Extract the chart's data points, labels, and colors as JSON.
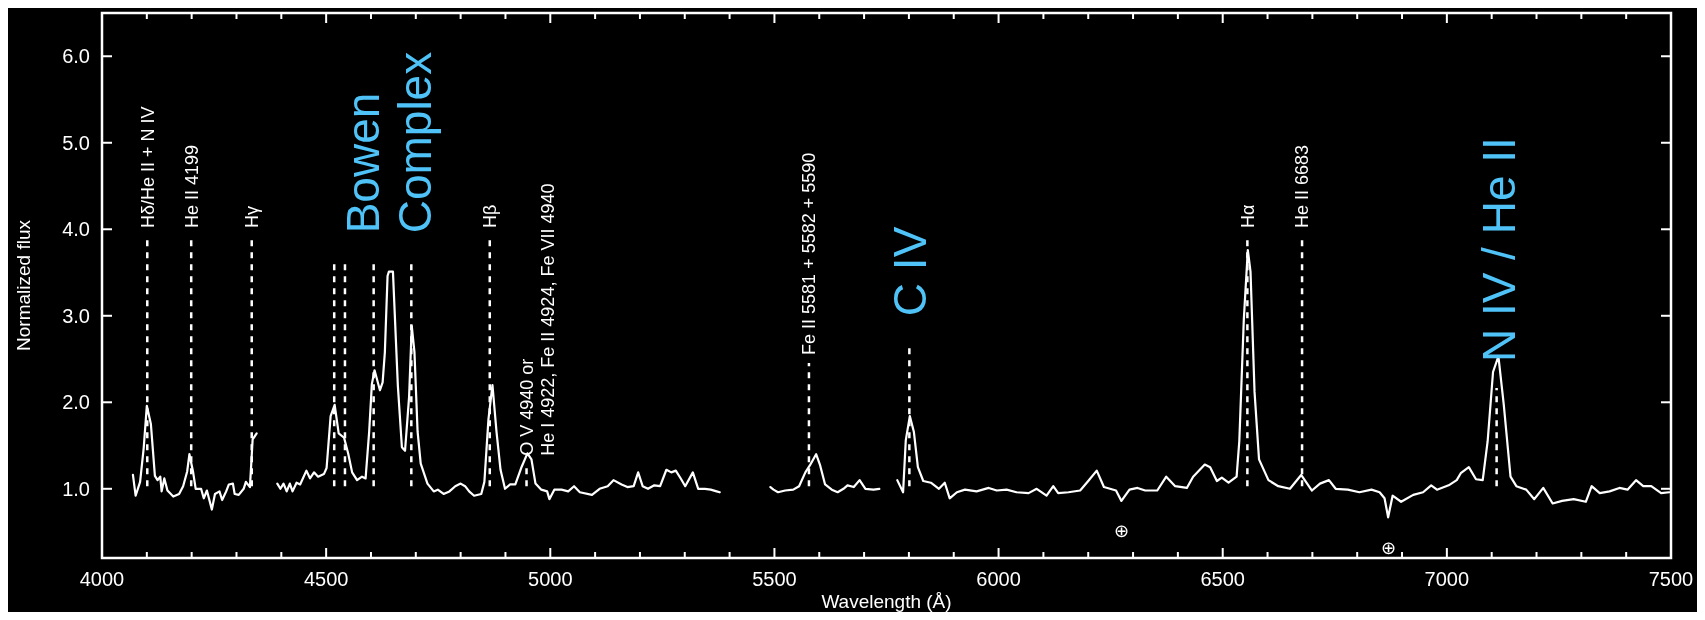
{
  "chart_data": {
    "type": "line",
    "xlabel": "Wavelength (Å)",
    "ylabel": "Normalized flux",
    "xlim": [
      4000,
      7500
    ],
    "ylim": [
      0.2,
      6.5
    ],
    "xticks": [
      4000,
      {
        "value": 4100,
        "label": null
      },
      {
        "value": 4200,
        "label": null
      },
      {
        "value": 4300,
        "label": null
      },
      {
        "value": 4400,
        "label": null
      },
      4500,
      {
        "value": 4600,
        "label": null
      },
      {
        "value": 4700,
        "label": null
      },
      {
        "value": 4800,
        "label": null
      },
      {
        "value": 4900,
        "label": null
      },
      5000,
      {
        "value": 5100,
        "label": null
      },
      {
        "value": 5200,
        "label": null
      },
      {
        "value": 5300,
        "label": null
      },
      {
        "value": 5400,
        "label": null
      },
      5500,
      {
        "value": 5600,
        "label": null
      },
      {
        "value": 5700,
        "label": null
      },
      {
        "value": 5800,
        "label": null
      },
      {
        "value": 5900,
        "label": null
      },
      6000,
      {
        "value": 6100,
        "label": null
      },
      {
        "value": 6200,
        "label": null
      },
      {
        "value": 6300,
        "label": null
      },
      {
        "value": 6400,
        "label": null
      },
      6500,
      {
        "value": 6600,
        "label": null
      },
      {
        "value": 6700,
        "label": null
      },
      {
        "value": 6800,
        "label": null
      },
      {
        "value": 6900,
        "label": null
      },
      7000,
      {
        "value": 7100,
        "label": null
      },
      {
        "value": 7200,
        "label": null
      },
      {
        "value": 7300,
        "label": null
      },
      {
        "value": 7400,
        "label": null
      },
      7500
    ],
    "yticks": [
      {
        "value": 1,
        "label": "1.0"
      },
      {
        "value": 2,
        "label": "2.0"
      },
      {
        "value": 3,
        "label": "3.0"
      },
      {
        "value": 4,
        "label": "4.0"
      },
      {
        "value": 5,
        "label": "5.0"
      },
      {
        "value": 6,
        "label": "6.0"
      }
    ],
    "grid": false,
    "marker": "none",
    "line_style": "solid",
    "x": [
      4069,
      4075,
      4085,
      4093,
      4100,
      4109,
      4118,
      4124,
      4130,
      4133,
      4139,
      4146,
      4159,
      4172,
      4181,
      4190,
      4195,
      4203,
      4209,
      4221,
      4227,
      4234,
      4245,
      4252,
      4262,
      4268,
      4277,
      4283,
      4292,
      4296,
      4305,
      4316,
      4321,
      4330,
      4336,
      4345,
      4368,
      4391,
      4398,
      4405,
      4412,
      4419,
      4425,
      4434,
      4442,
      4456,
      4464,
      4473,
      4482,
      4495,
      4501,
      4510,
      4519,
      4528,
      4540,
      4549,
      4558,
      4569,
      4580,
      4588,
      4596,
      4602,
      4608,
      4620,
      4626,
      4631,
      4637,
      4640,
      4649,
      4660,
      4669,
      4676,
      4685,
      4691,
      4697,
      4704,
      4711,
      4726,
      4740,
      4749,
      4762,
      4775,
      4788,
      4800,
      4810,
      4819,
      4830,
      4846,
      4853,
      4862,
      4871,
      4880,
      4889,
      4899,
      4910,
      4922,
      4935,
      4949,
      4958,
      4967,
      4980,
      4993,
      4998,
      5009,
      5025,
      5040,
      5053,
      5066,
      5093,
      5110,
      5128,
      5141,
      5159,
      5172,
      5186,
      5196,
      5206,
      5218,
      5232,
      5245,
      5259,
      5270,
      5280,
      5292,
      5301,
      5318,
      5330,
      5345,
      5358,
      5371,
      5378,
      5435,
      5491,
      5498,
      5508,
      5524,
      5542,
      5555,
      5569,
      5579,
      5593,
      5602,
      5613,
      5628,
      5641,
      5654,
      5663,
      5677,
      5690,
      5703,
      5721,
      5734,
      5754,
      5774,
      5787,
      5793,
      5802,
      5811,
      5820,
      5832,
      5849,
      5867,
      5880,
      5891,
      5907,
      5925,
      5951,
      5978,
      5996,
      6018,
      6040,
      6067,
      6085,
      6107,
      6122,
      6133,
      6156,
      6182,
      6200,
      6219,
      6235,
      6262,
      6274,
      6292,
      6310,
      6327,
      6354,
      6374,
      6394,
      6420,
      6434,
      6460,
      6472,
      6487,
      6498,
      6513,
      6531,
      6537,
      6547,
      6556,
      6562,
      6571,
      6581,
      6602,
      6624,
      6650,
      6675,
      6699,
      6717,
      6737,
      6752,
      6779,
      6805,
      6832,
      6850,
      6861,
      6869,
      6879,
      6898,
      6925,
      6947,
      6965,
      6978,
      7004,
      7022,
      7031,
      7049,
      7065,
      7080,
      7091,
      7103,
      7115,
      7127,
      7142,
      7155,
      7177,
      7195,
      7215,
      7236,
      7257,
      7283,
      7310,
      7323,
      7341,
      7363,
      7385,
      7403,
      7422,
      7438,
      7456,
      7478,
      7496
    ],
    "series": [
      {
        "color": "#ffffff",
        "values": [
          1.16,
          0.92,
          1.08,
          1.47,
          1.96,
          1.75,
          1.15,
          1.1,
          1.14,
          0.97,
          1.12,
          0.98,
          0.91,
          0.94,
          1.03,
          1.2,
          1.4,
          1.2,
          1.0,
          1.0,
          0.89,
          0.98,
          0.76,
          0.94,
          0.97,
          0.87,
          0.97,
          1.05,
          1.06,
          0.94,
          0.93,
          1.0,
          1.08,
          1.02,
          1.57,
          1.64,
          null,
          1.06,
          1.0,
          1.06,
          0.97,
          1.06,
          0.97,
          1.07,
          1.05,
          1.21,
          1.12,
          1.19,
          1.14,
          1.17,
          1.24,
          1.84,
          1.97,
          1.64,
          1.59,
          1.41,
          1.19,
          1.1,
          1.14,
          1.12,
          1.66,
          2.21,
          2.37,
          2.14,
          2.23,
          2.58,
          3.46,
          3.51,
          3.51,
          2.19,
          1.48,
          1.44,
          2.06,
          2.88,
          2.58,
          1.66,
          1.29,
          1.06,
          0.97,
          0.99,
          0.94,
          0.97,
          1.03,
          1.06,
          1.03,
          0.97,
          0.92,
          0.94,
          1.08,
          1.8,
          2.2,
          1.66,
          1.22,
          1.0,
          1.05,
          1.05,
          1.24,
          1.41,
          1.34,
          1.06,
          0.99,
          0.97,
          0.88,
          0.99,
          0.99,
          0.97,
          1.03,
          0.96,
          0.93,
          1.0,
          1.03,
          1.1,
          1.05,
          1.02,
          1.03,
          1.19,
          1.03,
          1.0,
          1.04,
          1.03,
          1.22,
          1.19,
          1.21,
          1.11,
          1.03,
          1.19,
          1.0,
          1.0,
          0.99,
          0.97,
          0.96,
          null,
          1.02,
          0.99,
          0.96,
          0.98,
          0.99,
          1.03,
          1.19,
          1.27,
          1.4,
          1.27,
          1.05,
          0.99,
          0.96,
          1.0,
          1.04,
          1.02,
          1.1,
          1.0,
          0.99,
          1.0,
          null,
          1.1,
          0.96,
          1.56,
          1.84,
          1.66,
          1.25,
          1.09,
          1.07,
          1.0,
          1.07,
          0.89,
          0.96,
          0.99,
          0.97,
          1.01,
          0.98,
          0.99,
          0.96,
          0.95,
          1.0,
          0.92,
          1.03,
          0.95,
          0.96,
          0.98,
          1.09,
          1.21,
          1.02,
          0.98,
          0.86,
          0.99,
          1.01,
          0.98,
          0.98,
          1.14,
          1.03,
          1.01,
          1.14,
          1.28,
          1.25,
          1.09,
          1.13,
          1.07,
          1.14,
          1.55,
          2.95,
          3.76,
          3.51,
          2.12,
          1.34,
          1.1,
          1.03,
          1.0,
          1.16,
          0.98,
          1.06,
          1.1,
          1.0,
          0.99,
          0.96,
          0.99,
          0.96,
          0.89,
          0.67,
          0.92,
          0.85,
          0.93,
          0.96,
          1.04,
          0.99,
          1.04,
          1.1,
          1.18,
          1.25,
          1.11,
          1.1,
          1.55,
          2.35,
          2.53,
          1.97,
          1.14,
          1.03,
          0.99,
          0.88,
          1.01,
          0.83,
          0.86,
          0.88,
          0.85,
          1.03,
          0.95,
          0.97,
          1.01,
          0.99,
          1.1,
          1.03,
          1.03,
          0.95,
          0.96
        ]
      }
    ],
    "ref_lines": [
      {
        "axis": "x",
        "value": 4101,
        "label": "Hδ/He II + N IV",
        "line_style": "dashed"
      },
      {
        "axis": "x",
        "value": 4199,
        "label": "He II 4199",
        "line_style": "dashed"
      },
      {
        "axis": "x",
        "value": 4334,
        "label": "Hγ",
        "line_style": "dashed"
      },
      {
        "axis": "x",
        "value": 4518,
        "line_style": "dashed"
      },
      {
        "axis": "x",
        "value": 4542,
        "line_style": "dashed"
      },
      {
        "axis": "x",
        "value": 4606,
        "color": "#ffffff",
        "line_style": "dashed"
      },
      {
        "axis": "x",
        "value": 4690,
        "line_style": "dashed"
      },
      {
        "axis": "x",
        "value": 4865,
        "label": "Hβ",
        "line_style": "dashed"
      },
      {
        "axis": "x",
        "value": 4947,
        "label": "O V 4940 or\nHe I 4922, Fe II 4924, Fe VII 4940",
        "line_style": "dashed"
      },
      {
        "axis": "x",
        "value": 5577,
        "label": "Fe II 5581 + 5582 + 5590",
        "line_style": "dashed"
      },
      {
        "axis": "x",
        "value": 5801,
        "color": "#ffffff",
        "line_style": "dashed"
      },
      {
        "axis": "x",
        "value": 6555,
        "label": "Hα",
        "line_style": "dashed"
      },
      {
        "axis": "x",
        "value": 6677,
        "label": "He II 6683",
        "line_style": "dashed"
      },
      {
        "axis": "x",
        "value": 7111,
        "color": "#ffffff",
        "line_style": "dashed"
      }
    ],
    "annotations": [
      {
        "text": "Bowen\nComplex",
        "x": 4640,
        "y": 3.51
      },
      {
        "text": "C IV",
        "x": 5802,
        "y": 1.84
      },
      {
        "text": "N IV / He II",
        "x": 7115,
        "y": 2.53
      },
      {
        "text": "⊕",
        "x": 6274,
        "y": 0.86
      },
      {
        "text": "⊕",
        "x": 6869,
        "y": 0.67
      }
    ]
  }
}
